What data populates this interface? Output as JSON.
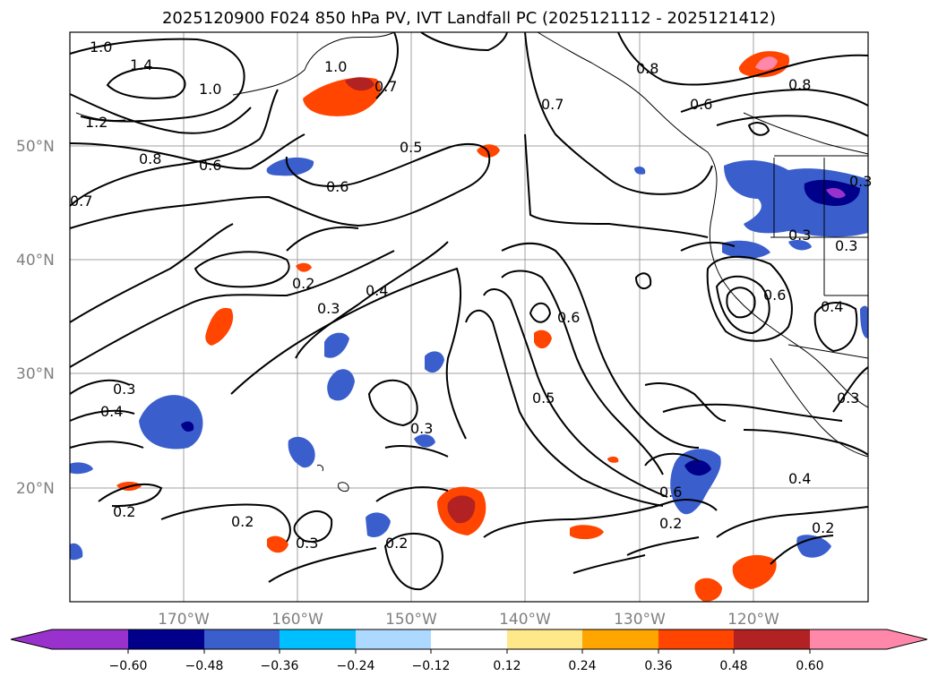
{
  "title": "2025120900 F024 850 hPa PV, IVT Landfall PC (2025121112 - 2025121412)",
  "map": {
    "lat_labels": [
      "50°N",
      "40°N",
      "30°N",
      "20°N"
    ],
    "lon_labels": [
      "170°W",
      "160°W",
      "150°W",
      "140°W",
      "130°W",
      "120°W"
    ],
    "contour_color": "#000000",
    "grid_color": "#a0a0a0",
    "contour_labels": [
      {
        "text": "1.0"
      },
      {
        "text": "1.4"
      },
      {
        "text": "1.0"
      },
      {
        "text": "1.2"
      },
      {
        "text": "0.8"
      },
      {
        "text": "0.6"
      },
      {
        "text": "0.7"
      },
      {
        "text": "1.0"
      },
      {
        "text": "0.7"
      },
      {
        "text": "0.6"
      },
      {
        "text": "0.5"
      },
      {
        "text": "0.7"
      },
      {
        "text": "0.8"
      },
      {
        "text": "0.6"
      },
      {
        "text": "0.8"
      },
      {
        "text": "0.2"
      },
      {
        "text": "0.3"
      },
      {
        "text": "0.4"
      },
      {
        "text": "0.6"
      },
      {
        "text": "0.5"
      },
      {
        "text": "0.3"
      },
      {
        "text": "0.4"
      },
      {
        "text": "0.3"
      },
      {
        "text": "0.2"
      },
      {
        "text": "0.2"
      },
      {
        "text": "0.3"
      },
      {
        "text": "0.2"
      },
      {
        "text": "0.6"
      },
      {
        "text": "0.2"
      },
      {
        "text": "0.4"
      },
      {
        "text": "0.2"
      },
      {
        "text": "0.3"
      },
      {
        "text": "0.6"
      },
      {
        "text": "0.4"
      },
      {
        "text": "0.3"
      },
      {
        "text": "0.3"
      },
      {
        "text": "0.3"
      }
    ]
  },
  "colorbar": {
    "ticks": [
      "−0.60",
      "−0.48",
      "−0.36",
      "−0.24",
      "−0.12",
      "0.12",
      "0.24",
      "0.36",
      "0.48",
      "0.60"
    ],
    "colors": [
      "#9932cc",
      "#00008b",
      "#3a5fcd",
      "#00bfff",
      "#add8ff",
      "#ffffff",
      "#ffe88a",
      "#ffa500",
      "#ff4500",
      "#b22222",
      "#ff88aa"
    ]
  }
}
